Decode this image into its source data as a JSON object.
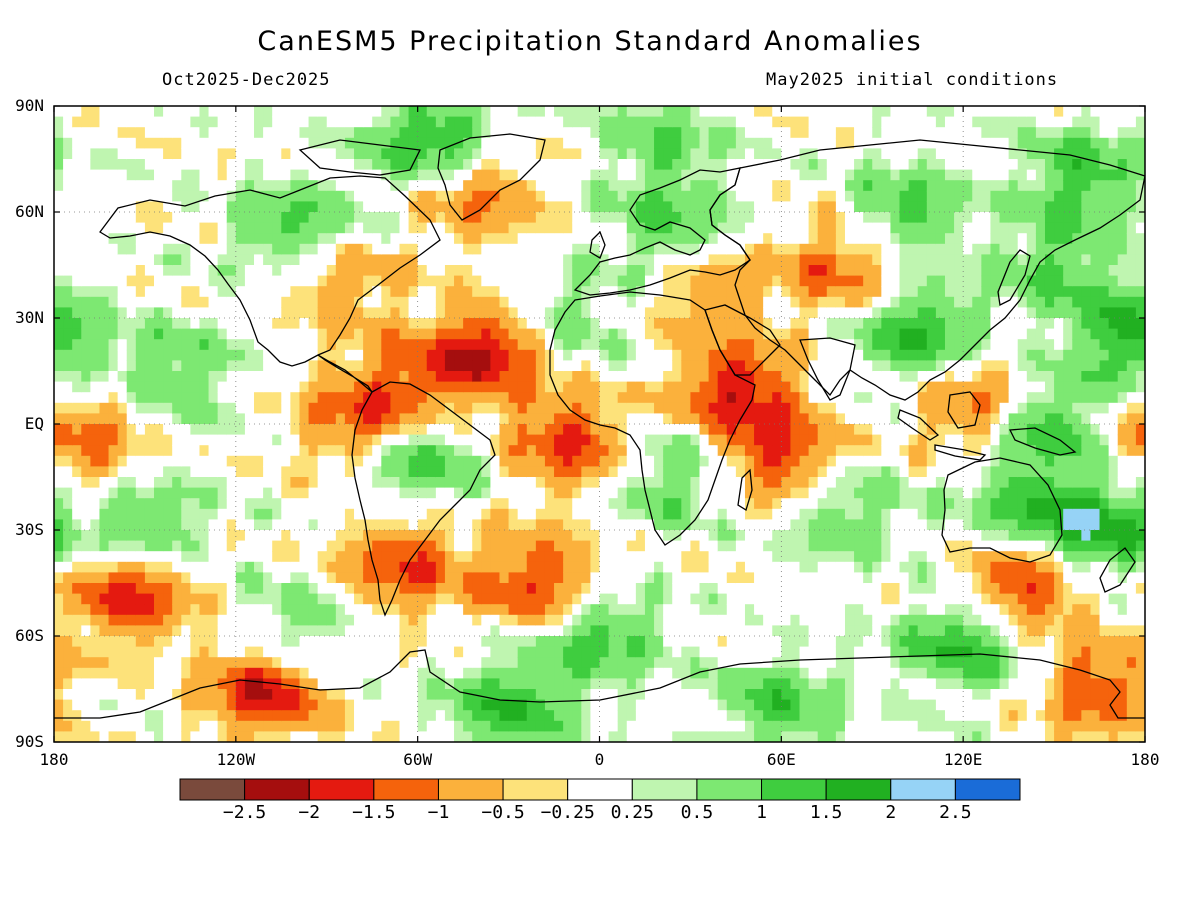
{
  "title": "CanESM5 Precipitation Standard Anomalies",
  "subtitle_left": "Oct2025-Dec2025",
  "subtitle_right": "May2025 initial conditions",
  "lat_labels": [
    "90N",
    "60N",
    "30N",
    "EQ",
    "30S",
    "60S",
    "90S"
  ],
  "lon_labels": [
    "180",
    "120W",
    "60W",
    "0",
    "60E",
    "120E",
    "180"
  ],
  "colorbar": {
    "colors": [
      "#7a4a3c",
      "#a50e0e",
      "#e41a10",
      "#f5630c",
      "#fbb13c",
      "#fde27a",
      "#ffffff",
      "#bff5b0",
      "#7de872",
      "#3fcd3f",
      "#21b021",
      "#96d3f6",
      "#1a6cd8"
    ],
    "tick_labels": [
      "−2.5",
      "−2",
      "−1.5",
      "−1",
      "−0.5",
      "−0.25",
      "0.25",
      "0.5",
      "1",
      "1.5",
      "2",
      "2.5"
    ]
  },
  "chart_data": {
    "type": "heatmap",
    "title": "CanESM5 Precipitation Standard Anomalies",
    "period": "Oct2025-Dec2025",
    "initial_conditions": "May2025 initial conditions",
    "xlabel": "",
    "ylabel": "",
    "x_range": [
      -180,
      180
    ],
    "y_range": [
      -90,
      90
    ],
    "levels": [
      -2.5,
      -2,
      -1.5,
      -1,
      -0.5,
      -0.25,
      0.25,
      0.5,
      1,
      1.5,
      2,
      2.5
    ],
    "anomaly_centers": [
      {
        "lon": -38,
        "lat": 20,
        "value": -2.0
      },
      {
        "lon": 45,
        "lat": 10,
        "value": -1.8
      },
      {
        "lon": 60,
        "lat": -10,
        "value": -1.6
      },
      {
        "lon": 125,
        "lat": 5,
        "value": -1.5
      },
      {
        "lon": 140,
        "lat": -45,
        "value": -1.8
      },
      {
        "lon": -110,
        "lat": -75,
        "value": -2.0
      },
      {
        "lon": -155,
        "lat": -48,
        "value": -1.8
      },
      {
        "lon": -20,
        "lat": -45,
        "value": -1.6
      },
      {
        "lon": -65,
        "lat": -40,
        "value": -1.5
      },
      {
        "lon": -10,
        "lat": -5,
        "value": -1.6
      },
      {
        "lon": 80,
        "lat": 45,
        "value": -1.3
      },
      {
        "lon": 35,
        "lat": 40,
        "value": -1.0
      },
      {
        "lon": -85,
        "lat": 40,
        "value": -1.0
      },
      {
        "lon": -80,
        "lat": 0,
        "value": -1.2
      },
      {
        "lon": -170,
        "lat": -5,
        "value": -1.2
      },
      {
        "lon": -65,
        "lat": 10,
        "value": -1.0
      },
      {
        "lon": 165,
        "lat": -75,
        "value": -1.4
      },
      {
        "lon": -40,
        "lat": 65,
        "value": -1.2
      },
      {
        "lon": -55,
        "lat": 80,
        "value": 1.6
      },
      {
        "lon": -100,
        "lat": 55,
        "value": 1.2
      },
      {
        "lon": -60,
        "lat": -10,
        "value": 1.3
      },
      {
        "lon": 25,
        "lat": 55,
        "value": 1.2
      },
      {
        "lon": 105,
        "lat": 25,
        "value": 1.6
      },
      {
        "lon": 145,
        "lat": 0,
        "value": 1.5
      },
      {
        "lon": 175,
        "lat": 25,
        "value": 1.6
      },
      {
        "lon": 165,
        "lat": -30,
        "value": 1.8
      },
      {
        "lon": 120,
        "lat": -62,
        "value": 1.5
      },
      {
        "lon": 0,
        "lat": -60,
        "value": 1.3
      },
      {
        "lon": -140,
        "lat": 15,
        "value": 1.0
      },
      {
        "lon": -150,
        "lat": -30,
        "value": 1.2
      },
      {
        "lon": -100,
        "lat": -60,
        "value": 1.0
      },
      {
        "lon": 100,
        "lat": 60,
        "value": 1.2
      },
      {
        "lon": 160,
        "lat": 70,
        "value": 1.3
      },
      {
        "lon": 25,
        "lat": -15,
        "value": 1.0
      },
      {
        "lon": -10,
        "lat": 30,
        "value": 0.8
      },
      {
        "lon": 80,
        "lat": -25,
        "value": 1.0
      },
      {
        "lon": 140,
        "lat": -25,
        "value": 1.2
      },
      {
        "lon": -30,
        "lat": -80,
        "value": 1.4
      },
      {
        "lon": 60,
        "lat": -80,
        "value": 1.2
      },
      {
        "lon": 20,
        "lat": 80,
        "value": 0.9
      },
      {
        "lon": 150,
        "lat": 45,
        "value": 1.0
      }
    ]
  }
}
